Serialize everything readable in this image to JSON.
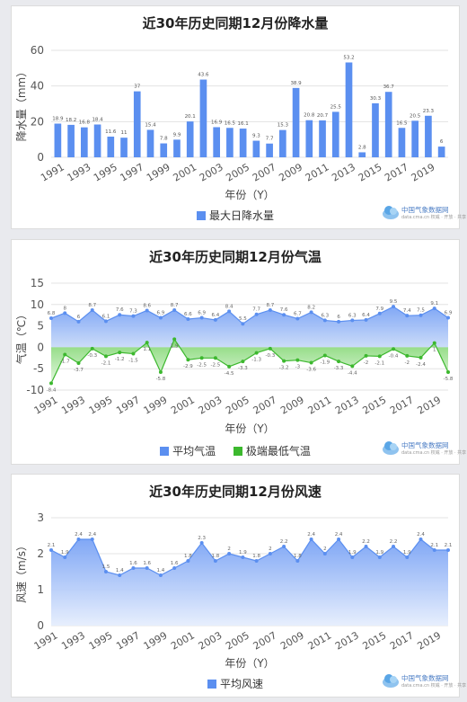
{
  "chart_data": [
    {
      "type": "bar",
      "title": "近30年历史同期12月份降水量",
      "xlabel": "年份（Y）",
      "ylabel": "降水量（mm）",
      "ylim": [
        0,
        60
      ],
      "yticks": [
        0,
        20,
        40,
        60
      ],
      "grid": true,
      "legend_position": "bottom",
      "categories": [
        "1991",
        "1992",
        "1993",
        "1994",
        "1995",
        "1996",
        "1997",
        "1998",
        "1999",
        "2000",
        "2001",
        "2002",
        "2003",
        "2004",
        "2005",
        "2006",
        "2007",
        "2008",
        "2009",
        "2010",
        "2011",
        "2012",
        "2013",
        "2014",
        "2015",
        "2016",
        "2017",
        "2018",
        "2019",
        "2020"
      ],
      "xtick_labels": [
        "1991",
        "1993",
        "1995",
        "1997",
        "1999",
        "2001",
        "2003",
        "2005",
        "2007",
        "2009",
        "2011",
        "2013",
        "2015",
        "2017",
        "2019"
      ],
      "series": [
        {
          "name": "最大日降水量",
          "color": "#5b8ff0",
          "values": [
            18.9,
            18.2,
            16.8,
            18.4,
            11.6,
            11.0,
            37.0,
            15.4,
            7.8,
            9.9,
            20.1,
            43.6,
            16.9,
            16.5,
            16.1,
            9.3,
            7.7,
            15.3,
            38.9,
            20.8,
            20.7,
            25.5,
            53.2,
            2.8,
            30.3,
            36.7,
            16.5,
            20.5,
            23.3,
            6.0
          ]
        }
      ]
    },
    {
      "type": "area",
      "title": "近30年历史同期12月份气温",
      "xlabel": "年份（Y）",
      "ylabel": "气温（℃）",
      "ylim": [
        -10,
        15
      ],
      "yticks": [
        -10,
        -5,
        0,
        5,
        10,
        15
      ],
      "grid": true,
      "legend_position": "bottom",
      "categories": [
        "1991",
        "1992",
        "1993",
        "1994",
        "1995",
        "1996",
        "1997",
        "1998",
        "1999",
        "2000",
        "2001",
        "2002",
        "2003",
        "2004",
        "2005",
        "2006",
        "2007",
        "2008",
        "2009",
        "2010",
        "2011",
        "2012",
        "2013",
        "2014",
        "2015",
        "2016",
        "2017",
        "2018",
        "2019",
        "2020"
      ],
      "xtick_labels": [
        "1991",
        "1993",
        "1995",
        "1997",
        "1999",
        "2001",
        "2003",
        "2005",
        "2007",
        "2009",
        "2011",
        "2013",
        "2015",
        "2017",
        "2019"
      ],
      "series": [
        {
          "name": "平均气温",
          "color": "#5b8ff0",
          "values": [
            6.8,
            8.0,
            6.0,
            8.7,
            6.1,
            7.6,
            7.3,
            8.6,
            6.9,
            8.7,
            6.6,
            6.9,
            6.4,
            8.4,
            5.5,
            7.7,
            8.7,
            7.6,
            6.7,
            8.2,
            6.3,
            6.0,
            6.3,
            6.4,
            7.9,
            9.5,
            7.4,
            7.5,
            9.1,
            6.9
          ]
        },
        {
          "name": "极端最低气温",
          "color": "#3cb82e",
          "values": [
            -8.4,
            -1.7,
            -3.7,
            -0.3,
            -2.1,
            -1.2,
            -1.5,
            1.1,
            -5.8,
            1.9,
            -2.9,
            -2.5,
            -2.5,
            -4.5,
            -3.3,
            -1.3,
            -0.3,
            -3.2,
            -3.0,
            -3.6,
            -1.9,
            -3.3,
            -4.4,
            -2.0,
            -2.1,
            -0.4,
            -2.0,
            -2.4,
            1.0,
            -5.8
          ]
        }
      ]
    },
    {
      "type": "area",
      "title": "近30年历史同期12月份风速",
      "xlabel": "年份（Y）",
      "ylabel": "风速（m/s）",
      "ylim": [
        0,
        3
      ],
      "yticks": [
        0,
        1,
        2,
        3
      ],
      "grid": true,
      "legend_position": "bottom",
      "categories": [
        "1991",
        "1992",
        "1993",
        "1994",
        "1995",
        "1996",
        "1997",
        "1998",
        "1999",
        "2000",
        "2001",
        "2002",
        "2003",
        "2004",
        "2005",
        "2006",
        "2007",
        "2008",
        "2009",
        "2010",
        "2011",
        "2012",
        "2013",
        "2014",
        "2015",
        "2016",
        "2017",
        "2018",
        "2019",
        "2020"
      ],
      "xtick_labels": [
        "1991",
        "1993",
        "1995",
        "1997",
        "1999",
        "2001",
        "2003",
        "2005",
        "2007",
        "2009",
        "2011",
        "2013",
        "2015",
        "2017",
        "2019"
      ],
      "series": [
        {
          "name": "平均风速",
          "color": "#5b8ff0",
          "values": [
            2.1,
            1.9,
            2.4,
            2.4,
            1.5,
            1.4,
            1.6,
            1.6,
            1.4,
            1.6,
            1.8,
            2.3,
            1.8,
            2.0,
            1.9,
            1.8,
            2.0,
            2.2,
            1.8,
            2.4,
            2.0,
            2.4,
            1.9,
            2.2,
            1.9,
            2.2,
            1.9,
            2.4,
            2.1,
            2.1
          ]
        }
      ]
    }
  ],
  "logo": {
    "name": "中国气象数据网",
    "sub": "data.cma.cn  权威 · 开放 · 共享"
  },
  "colors": {
    "accent": "#5b8ff0",
    "green": "#3cb82e"
  }
}
